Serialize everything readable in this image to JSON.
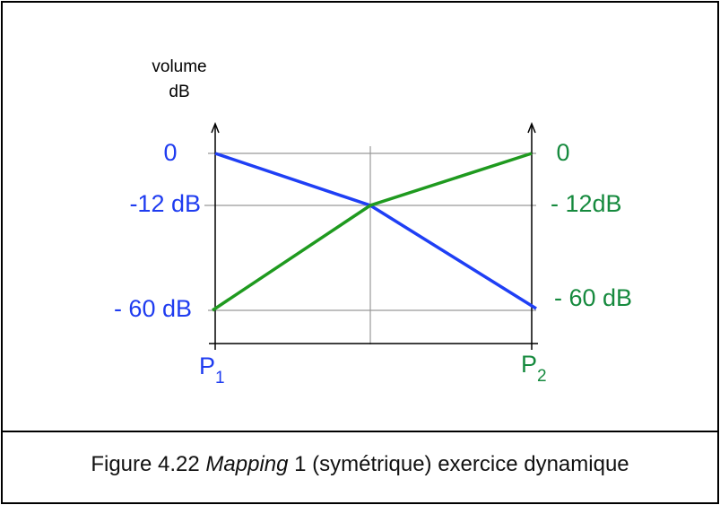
{
  "axis_label": {
    "line1": "volume",
    "line2": "dB"
  },
  "left_labels": [
    "0",
    "-12 dB",
    "- 60 dB"
  ],
  "right_labels": [
    "0",
    "- 12dB",
    "- 60 dB"
  ],
  "points": [
    {
      "letter": "P",
      "sub": "1"
    },
    {
      "letter": "P",
      "sub": "2"
    }
  ],
  "caption": {
    "prefix": "Figure 4.22",
    "italic": "Mapping",
    "suffix": "1 (symétrique) exercice dynamique"
  }
}
